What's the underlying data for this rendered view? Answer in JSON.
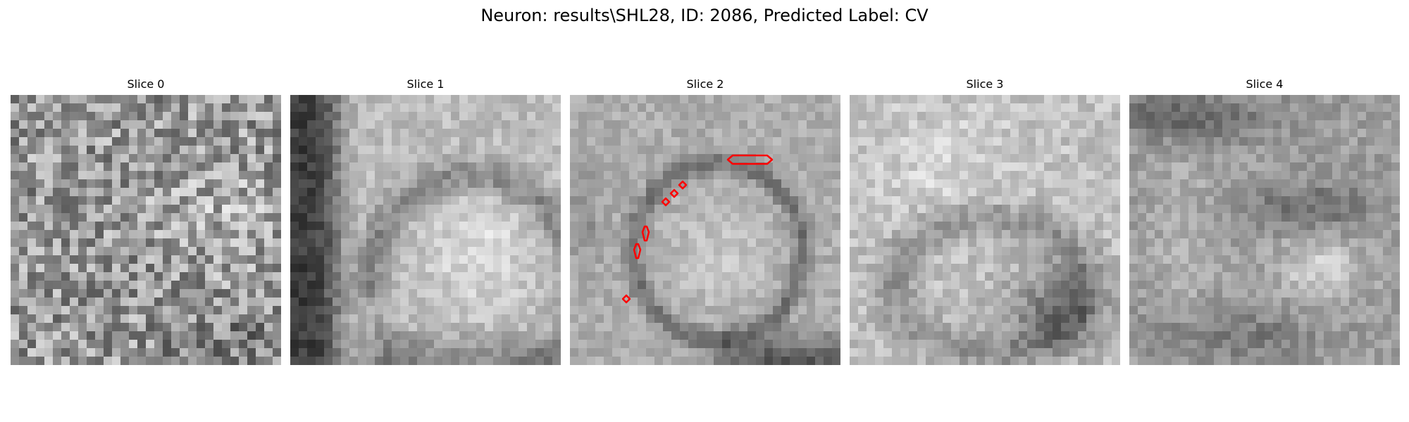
{
  "title": "Neuron: results\\SHL28, ID: 2086, Predicted Label: CV",
  "panels": [
    {
      "title": "Slice 0"
    },
    {
      "title": "Slice 1"
    },
    {
      "title": "Slice 2"
    },
    {
      "title": "Slice 3"
    },
    {
      "title": "Slice 4"
    }
  ],
  "colors": {
    "background": "#ffffff",
    "text": "#000000",
    "contour": "#ff0000",
    "colormap": "gray"
  }
}
